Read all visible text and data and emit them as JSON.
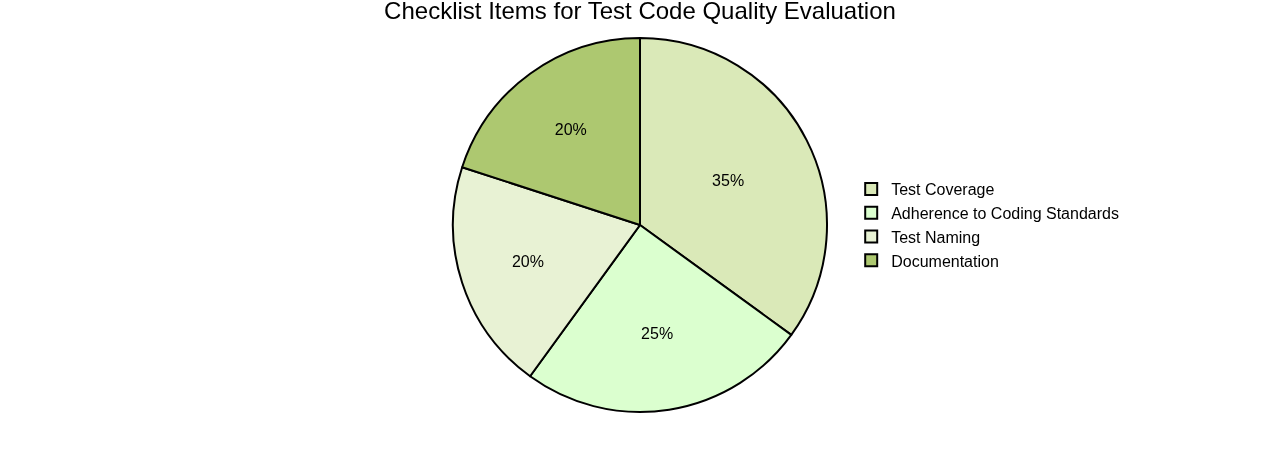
{
  "chart_data": {
    "type": "pie",
    "title": "Checklist Items for Test Code Quality Evaluation",
    "categories": [
      "Test Coverage",
      "Adherence to Coding Standards",
      "Test Naming",
      "Documentation"
    ],
    "values": [
      35,
      25,
      20,
      20
    ],
    "value_labels": [
      "35%",
      "25%",
      "20%",
      "20%"
    ],
    "colors": [
      "#dae9b8",
      "#dbffcf",
      "#e8f2d4",
      "#adc870"
    ],
    "legend": "right"
  }
}
